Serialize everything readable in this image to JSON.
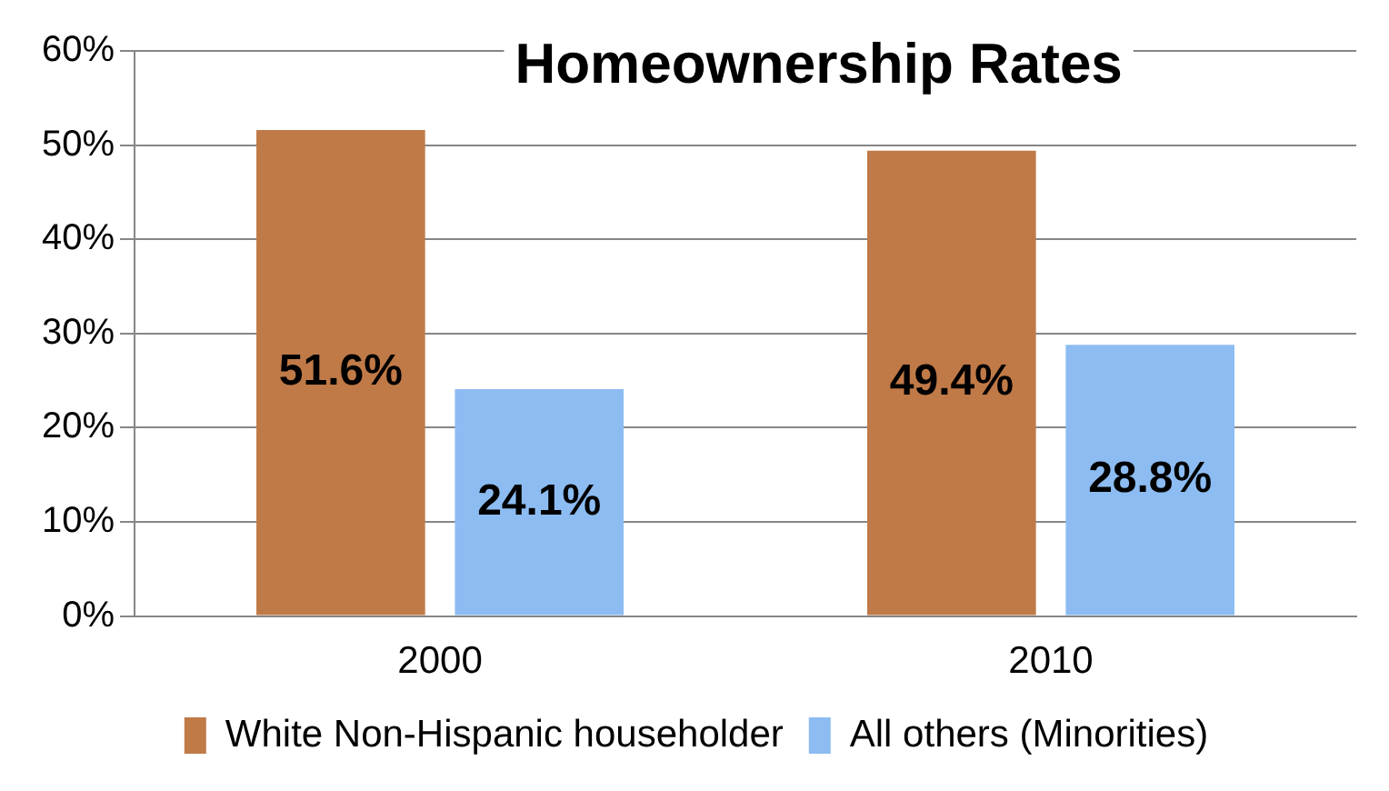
{
  "chart_data": {
    "type": "bar",
    "title": "Homeownership Rates",
    "categories": [
      "2000",
      "2010"
    ],
    "series": [
      {
        "name": "White Non-Hispanic householder",
        "color": "#c07a48",
        "values": [
          51.6,
          49.4
        ],
        "value_labels": [
          "51.6%",
          "49.4%"
        ]
      },
      {
        "name": "All others (Minorities)",
        "color": "#8cbcf2",
        "values": [
          24.1,
          28.8
        ],
        "value_labels": [
          "24.1%",
          "28.8%"
        ]
      }
    ],
    "ylim": [
      0,
      60
    ],
    "yticks": [
      {
        "value": 0,
        "label": "0%"
      },
      {
        "value": 10,
        "label": "10%"
      },
      {
        "value": 20,
        "label": "20%"
      },
      {
        "value": 30,
        "label": "30%"
      },
      {
        "value": 40,
        "label": "40%"
      },
      {
        "value": 50,
        "label": "50%"
      },
      {
        "value": 60,
        "label": "60%"
      }
    ],
    "grid": "y",
    "legend": "bottom"
  }
}
